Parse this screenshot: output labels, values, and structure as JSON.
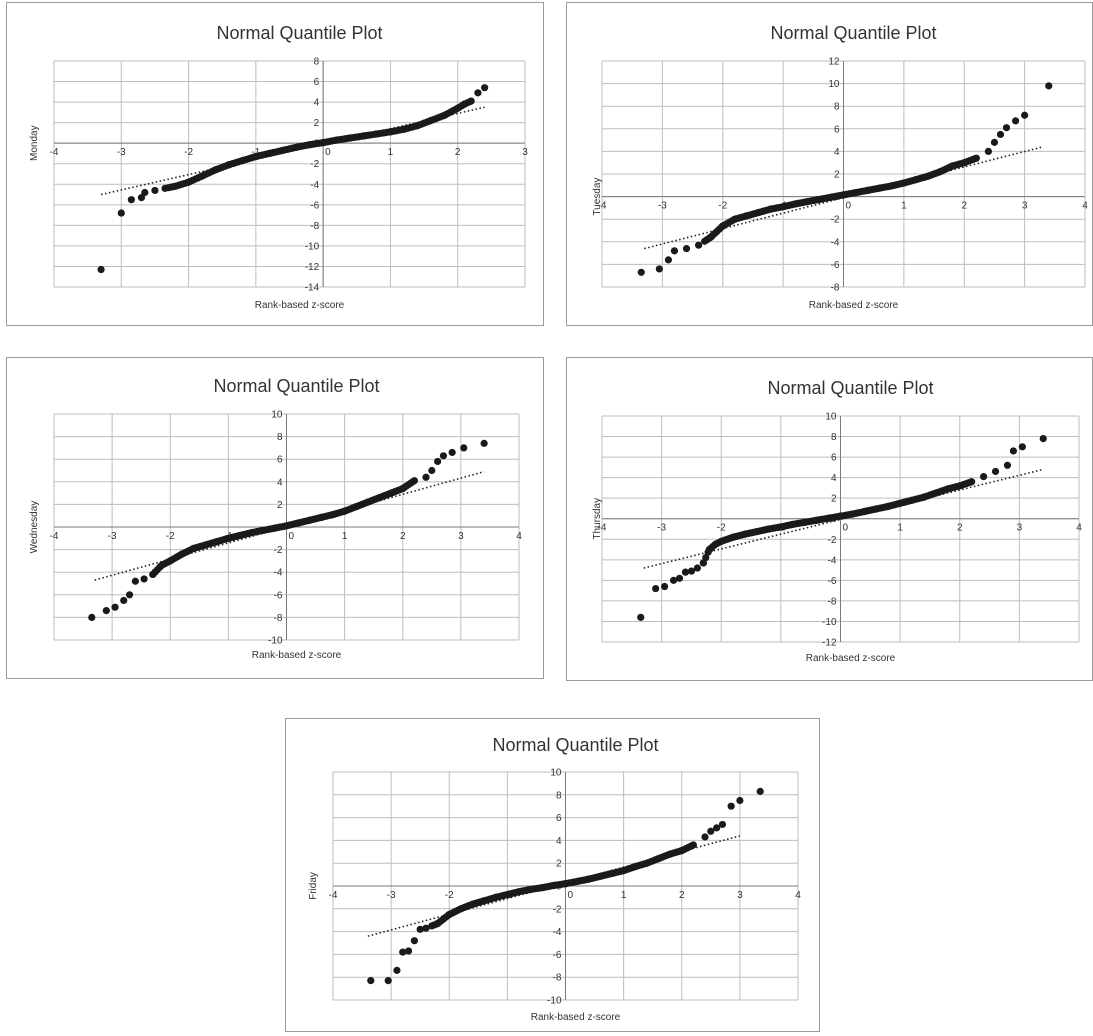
{
  "chart_data": [
    {
      "type": "scatter",
      "title": "Normal Quantile Plot",
      "xlabel": "Rank-based z-score",
      "ylabel": "Monday",
      "xlim": [
        -4,
        3
      ],
      "ylim": [
        -14,
        8
      ],
      "xticks": [
        -4,
        -3,
        -2,
        -1,
        0,
        1,
        2,
        3
      ],
      "yticks": [
        -14,
        -12,
        -10,
        -8,
        -6,
        -4,
        -2,
        0,
        2,
        4,
        6,
        8
      ],
      "grid": true,
      "marker_color": "#1a1a1a",
      "trendline": {
        "style": "dotted",
        "x": [
          -3.3,
          2.4
        ],
        "y": [
          -5.0,
          3.5
        ]
      },
      "shape": {
        "z": [
          -3.3,
          -3.0,
          -2.85,
          -2.7,
          -2.65,
          -2.5,
          -2.35,
          -2.2,
          -2.0,
          -1.8,
          -1.6,
          -1.4,
          -1.2,
          -1.0,
          -0.8,
          -0.6,
          -0.4,
          -0.2,
          0,
          0.2,
          0.4,
          0.6,
          0.8,
          1.0,
          1.2,
          1.4,
          1.6,
          1.8,
          2.0,
          2.1,
          2.2,
          2.3,
          2.4
        ],
        "v": [
          -12.3,
          -6.8,
          -5.5,
          -5.3,
          -4.8,
          -4.6,
          -4.4,
          -4.2,
          -3.8,
          -3.2,
          -2.6,
          -2.1,
          -1.7,
          -1.3,
          -1.0,
          -0.7,
          -0.4,
          -0.15,
          0.05,
          0.3,
          0.5,
          0.7,
          0.9,
          1.1,
          1.35,
          1.7,
          2.2,
          2.7,
          3.4,
          3.8,
          4.1,
          4.9,
          5.4
        ]
      }
    },
    {
      "type": "scatter",
      "title": "Normal Quantile Plot",
      "xlabel": "Rank-based z-score",
      "ylabel": "Tuesday",
      "xlim": [
        -4,
        4
      ],
      "ylim": [
        -8,
        12
      ],
      "xticks": [
        -4,
        -3,
        -2,
        -1,
        0,
        1,
        2,
        3,
        4
      ],
      "yticks": [
        -8,
        -6,
        -4,
        -2,
        0,
        2,
        4,
        6,
        8,
        10,
        12
      ],
      "grid": true,
      "marker_color": "#1a1a1a",
      "trendline": {
        "style": "dotted",
        "x": [
          -3.3,
          3.3
        ],
        "y": [
          -4.6,
          4.4
        ]
      },
      "shape": {
        "z": [
          -3.35,
          -3.05,
          -2.9,
          -2.8,
          -2.6,
          -2.4,
          -2.2,
          -2.0,
          -1.8,
          -1.6,
          -1.4,
          -1.2,
          -1.0,
          -0.8,
          -0.6,
          -0.4,
          -0.2,
          0,
          0.2,
          0.4,
          0.6,
          0.8,
          1.0,
          1.2,
          1.4,
          1.6,
          1.8,
          2.0,
          2.2,
          2.4,
          2.5,
          2.6,
          2.7,
          2.85,
          3.0,
          3.4
        ],
        "v": [
          -6.7,
          -6.4,
          -5.6,
          -4.8,
          -4.6,
          -4.3,
          -3.6,
          -2.6,
          -2.0,
          -1.7,
          -1.4,
          -1.1,
          -0.9,
          -0.65,
          -0.45,
          -0.25,
          -0.05,
          0.15,
          0.35,
          0.55,
          0.75,
          0.95,
          1.2,
          1.5,
          1.8,
          2.2,
          2.7,
          3.0,
          3.4,
          4.0,
          4.8,
          5.5,
          6.1,
          6.7,
          7.2,
          9.8
        ]
      }
    },
    {
      "type": "scatter",
      "title": "Normal Quantile Plot",
      "xlabel": "Rank-based z-score",
      "ylabel": "Wednesday",
      "xlim": [
        -4,
        4
      ],
      "ylim": [
        -10,
        10
      ],
      "xticks": [
        -4,
        -3,
        -2,
        -1,
        0,
        1,
        2,
        3,
        4
      ],
      "yticks": [
        -10,
        -8,
        -6,
        -4,
        -2,
        0,
        2,
        4,
        6,
        8,
        10
      ],
      "grid": true,
      "marker_color": "#1a1a1a",
      "trendline": {
        "style": "dotted",
        "x": [
          -3.3,
          3.4
        ],
        "y": [
          -4.7,
          4.9
        ]
      },
      "shape": {
        "z": [
          -3.35,
          -3.1,
          -2.95,
          -2.8,
          -2.7,
          -2.6,
          -2.45,
          -2.3,
          -2.15,
          -2.0,
          -1.8,
          -1.6,
          -1.4,
          -1.2,
          -1.0,
          -0.8,
          -0.6,
          -0.4,
          -0.2,
          0,
          0.2,
          0.4,
          0.6,
          0.8,
          1.0,
          1.2,
          1.4,
          1.6,
          1.8,
          2.0,
          2.2,
          2.4,
          2.5,
          2.6,
          2.7,
          2.85,
          3.05,
          3.4
        ],
        "v": [
          -8.0,
          -7.4,
          -7.1,
          -6.5,
          -6.0,
          -4.8,
          -4.6,
          -4.2,
          -3.4,
          -3.0,
          -2.4,
          -1.9,
          -1.6,
          -1.3,
          -1.0,
          -0.75,
          -0.5,
          -0.3,
          -0.1,
          0.1,
          0.35,
          0.6,
          0.85,
          1.1,
          1.4,
          1.8,
          2.2,
          2.6,
          3.0,
          3.4,
          4.1,
          4.4,
          5.0,
          5.8,
          6.3,
          6.6,
          7.0,
          7.4
        ]
      }
    },
    {
      "type": "scatter",
      "title": "Normal Quantile Plot",
      "xlabel": "Rank-based z-score",
      "ylabel": "Thursday",
      "xlim": [
        -4,
        4
      ],
      "ylim": [
        -12,
        10
      ],
      "xticks": [
        -4,
        -3,
        -2,
        -1,
        0,
        1,
        2,
        3,
        4
      ],
      "yticks": [
        -12,
        -10,
        -8,
        -6,
        -4,
        -2,
        0,
        2,
        4,
        6,
        8,
        10
      ],
      "grid": true,
      "marker_color": "#1a1a1a",
      "trendline": {
        "style": "dotted",
        "x": [
          -3.3,
          3.4
        ],
        "y": [
          -4.8,
          4.8
        ]
      },
      "shape": {
        "z": [
          -3.35,
          -3.1,
          -2.95,
          -2.8,
          -2.7,
          -2.6,
          -2.5,
          -2.4,
          -2.3,
          -2.2,
          -2.1,
          -2.0,
          -1.8,
          -1.6,
          -1.4,
          -1.2,
          -1.0,
          -0.8,
          -0.6,
          -0.4,
          -0.2,
          0,
          0.2,
          0.4,
          0.6,
          0.8,
          1.0,
          1.2,
          1.4,
          1.6,
          1.8,
          2.0,
          2.2,
          2.4,
          2.6,
          2.8,
          2.9,
          3.05,
          3.4
        ],
        "v": [
          -9.6,
          -6.8,
          -6.6,
          -6.0,
          -5.8,
          -5.2,
          -5.1,
          -4.8,
          -4.3,
          -3.0,
          -2.5,
          -2.2,
          -1.8,
          -1.5,
          -1.25,
          -1.0,
          -0.8,
          -0.55,
          -0.35,
          -0.15,
          0.05,
          0.25,
          0.45,
          0.7,
          0.95,
          1.2,
          1.5,
          1.8,
          2.1,
          2.5,
          2.9,
          3.2,
          3.6,
          4.1,
          4.6,
          5.2,
          6.6,
          7.0,
          7.8
        ]
      }
    },
    {
      "type": "scatter",
      "title": "Normal Quantile Plot",
      "xlabel": "Rank-based z-score",
      "ylabel": "Friday",
      "xlim": [
        -4,
        4
      ],
      "ylim": [
        -10,
        10
      ],
      "xticks": [
        -4,
        -3,
        -2,
        -1,
        0,
        1,
        2,
        3,
        4
      ],
      "yticks": [
        -10,
        -8,
        -6,
        -4,
        -2,
        0,
        2,
        4,
        6,
        8,
        10
      ],
      "grid": true,
      "marker_color": "#1a1a1a",
      "trendline": {
        "style": "dotted",
        "x": [
          -3.4,
          3.0
        ],
        "y": [
          -4.4,
          4.4
        ]
      },
      "shape": {
        "z": [
          -3.35,
          -3.05,
          -2.9,
          -2.8,
          -2.7,
          -2.6,
          -2.5,
          -2.4,
          -2.2,
          -2.0,
          -1.8,
          -1.6,
          -1.4,
          -1.2,
          -1.0,
          -0.8,
          -0.6,
          -0.4,
          -0.2,
          0,
          0.2,
          0.4,
          0.6,
          0.8,
          1.0,
          1.2,
          1.4,
          1.6,
          1.8,
          2.0,
          2.2,
          2.4,
          2.5,
          2.6,
          2.7,
          2.85,
          3.0,
          3.35
        ],
        "v": [
          -8.3,
          -8.3,
          -7.4,
          -5.8,
          -5.7,
          -4.8,
          -3.8,
          -3.7,
          -3.3,
          -2.5,
          -2.0,
          -1.6,
          -1.3,
          -1.0,
          -0.75,
          -0.5,
          -0.3,
          -0.15,
          0.05,
          0.2,
          0.4,
          0.6,
          0.85,
          1.1,
          1.35,
          1.7,
          2.0,
          2.4,
          2.8,
          3.1,
          3.6,
          4.3,
          4.8,
          5.1,
          5.4,
          7.0,
          7.5,
          8.3
        ]
      }
    }
  ]
}
